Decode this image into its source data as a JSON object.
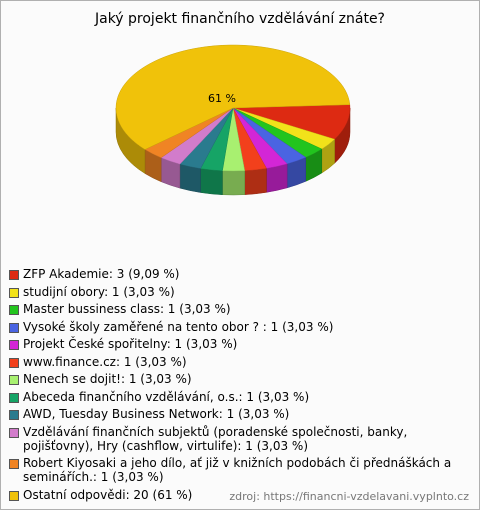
{
  "chart_data": {
    "type": "pie",
    "title": "Jaký projekt finančního vzdělávání znáte?",
    "categories": [
      "ZFP Akademie: 3 (9,09 %)",
      "studijní obory: 1 (3,03 %)",
      "Master bussiness class: 1 (3,03 %)",
      "Vysoké školy zaměřené na tento obor ? : 1 (3,03 %)",
      "Projekt České spořitelny: 1 (3,03 %)",
      "www.finance.cz: 1 (3,03 %)",
      "Nenech se dojit!: 1 (3,03 %)",
      "Abeceda finančního vzdělávání, o.s.: 1 (3,03 %)",
      "AWD, Tuesday Business Network: 1 (3,03 %)",
      "Vzdělávání finančních subjektů (poradenské společnosti, banky, pojišťovny), Hry (cashflow, virtulife): 1 (3,03 %)",
      "Robert Kiyosaki a jeho dílo, ať již v knižních podobách či přednáškách a seminářích.: 1 (3,03 %)",
      "Ostatní odpovědi: 20 (61 %)"
    ],
    "values": [
      9.09,
      3.03,
      3.03,
      3.03,
      3.03,
      3.03,
      3.03,
      3.03,
      3.03,
      3.03,
      3.03,
      60.61
    ],
    "value_labels": [
      null,
      null,
      null,
      null,
      null,
      null,
      null,
      null,
      null,
      null,
      null,
      "61 %"
    ],
    "colors": [
      "#dd2a12",
      "#f2e21a",
      "#22c41e",
      "#4a64e2",
      "#d326d6",
      "#f2401c",
      "#a8f070",
      "#16a466",
      "#2a7b8e",
      "#d27ccb",
      "#f08424",
      "#f0c20a"
    ],
    "source": "zdroj: https://financni-vzdelavani.vyplnto.cz"
  }
}
